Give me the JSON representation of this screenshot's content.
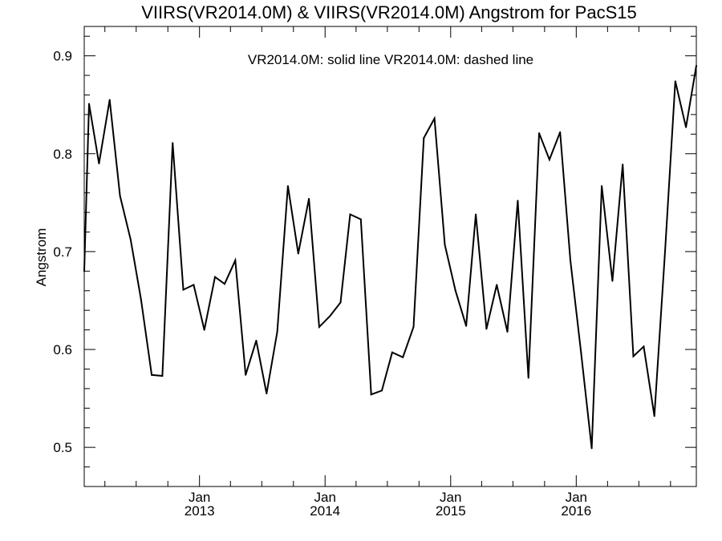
{
  "chart_data": {
    "type": "line",
    "title": "VIIRS(VR2014.0M) & VIIRS(VR2014.0M)  Angstrom for PacS15",
    "subtitle": "VR2014.0M: solid line   VR2014.0M: dashed line",
    "xlabel": "",
    "ylabel": "Angstrom",
    "ylim": [
      0.46,
      0.93
    ],
    "xlim": [
      "2012-02-01",
      "2016-12-15"
    ],
    "yticks": [
      0.5,
      0.6,
      0.7,
      0.8,
      0.9
    ],
    "ytick_labels": [
      "0.5",
      "0.6",
      "0.7",
      "0.8",
      "0.9"
    ],
    "xticks": [
      {
        "date": "2013-01-01",
        "line1": "Jan",
        "line2": "2013"
      },
      {
        "date": "2014-01-01",
        "line1": "Jan",
        "line2": "2014"
      },
      {
        "date": "2015-01-01",
        "line1": "Jan",
        "line2": "2015"
      },
      {
        "date": "2016-01-01",
        "line1": "Jan",
        "line2": "2016"
      }
    ],
    "grid": false,
    "series": [
      {
        "name": "VR2014.0M",
        "style": "solid",
        "color": "#000000",
        "x": [
          "2012-02-01",
          "2012-02-15",
          "2012-03-15",
          "2012-04-15",
          "2012-05-15",
          "2012-06-15",
          "2012-07-15",
          "2012-08-15",
          "2012-09-15",
          "2012-10-15",
          "2012-11-15",
          "2012-12-15",
          "2013-01-15",
          "2013-02-15",
          "2013-03-15",
          "2013-04-15",
          "2013-05-15",
          "2013-06-15",
          "2013-07-15",
          "2013-08-15",
          "2013-09-15",
          "2013-10-15",
          "2013-11-15",
          "2013-12-15",
          "2014-01-15",
          "2014-02-15",
          "2014-03-15",
          "2014-04-15",
          "2014-05-15",
          "2014-06-15",
          "2014-07-15",
          "2014-08-15",
          "2014-09-15",
          "2014-10-15",
          "2014-11-15",
          "2014-12-15",
          "2015-01-15",
          "2015-02-15",
          "2015-03-15",
          "2015-04-15",
          "2015-05-15",
          "2015-06-15",
          "2015-07-15",
          "2015-08-15",
          "2015-09-15",
          "2015-10-15",
          "2015-11-15",
          "2015-12-15",
          "2016-01-15",
          "2016-02-15",
          "2016-03-15",
          "2016-04-15",
          "2016-05-15",
          "2016-06-15",
          "2016-07-15",
          "2016-08-15",
          "2016-09-15",
          "2016-10-15",
          "2016-11-15",
          "2016-12-15"
        ],
        "values": [
          0.68,
          0.851,
          0.79,
          0.855,
          0.757,
          0.712,
          0.651,
          0.574,
          0.573,
          0.811,
          0.661,
          0.666,
          0.62,
          0.674,
          0.667,
          0.691,
          0.574,
          0.609,
          0.555,
          0.618,
          0.767,
          0.698,
          0.754,
          0.623,
          0.634,
          0.648,
          0.738,
          0.733,
          0.554,
          0.558,
          0.597,
          0.592,
          0.623,
          0.816,
          0.836,
          0.707,
          0.66,
          0.624,
          0.738,
          0.621,
          0.666,
          0.618,
          0.752,
          0.571,
          0.821,
          0.794,
          0.822,
          0.691,
          0.597,
          0.499,
          0.767,
          0.67,
          0.789,
          0.593,
          0.603,
          0.532,
          0.7,
          0.874,
          0.827,
          0.89
        ]
      }
    ]
  }
}
